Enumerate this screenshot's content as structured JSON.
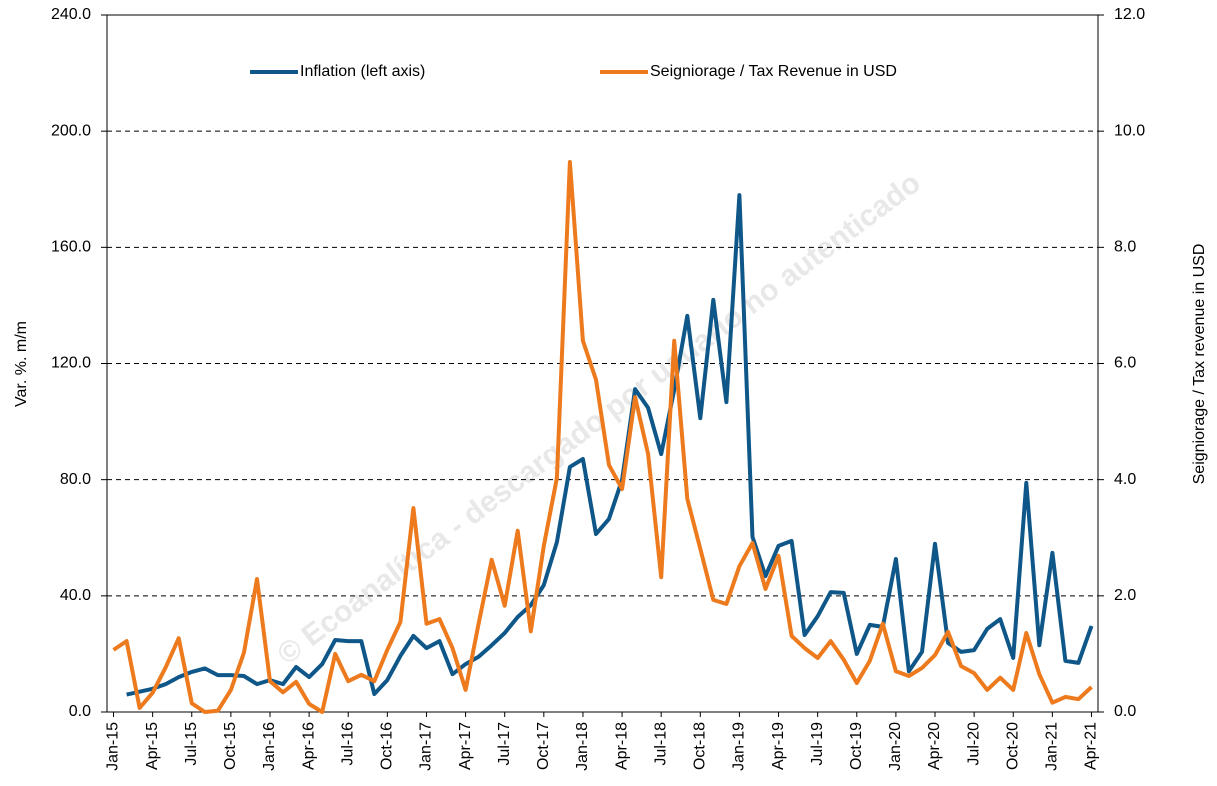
{
  "chart_data": {
    "type": "line",
    "watermark": "© Ecoanalítica - descargado por usuario no autenticado",
    "ylabel": "Var. %. m/m",
    "y2label": "Seigniorage / Tax revenue in USD",
    "categories": [
      "Jan-15",
      null,
      null,
      "Apr-15",
      null,
      null,
      "Jul-15",
      null,
      null,
      "Oct-15",
      null,
      null,
      "Jan-16",
      null,
      null,
      "Apr-16",
      null,
      null,
      "Jul-16",
      null,
      null,
      "Oct-16",
      null,
      null,
      "Jan-17",
      null,
      null,
      "Apr-17",
      null,
      null,
      "Jul-17",
      null,
      null,
      "Oct-17",
      null,
      null,
      "Jan-18",
      null,
      null,
      "Apr-18",
      null,
      null,
      "Jul-18",
      null,
      null,
      "Oct-18",
      null,
      null,
      "Jan-19",
      null,
      null,
      "Apr-19",
      null,
      null,
      "Jul-19",
      null,
      null,
      "Oct-19",
      null,
      null,
      "Jan-20",
      null,
      null,
      "Apr-20",
      null,
      null,
      "Jul-20",
      null,
      null,
      "Oct-20",
      null,
      null,
      "Jan-21",
      null,
      null,
      "Apr-21"
    ],
    "series": [
      {
        "name": "Inflation (left axis)",
        "color": "#0f5788",
        "values": [
          null,
          6,
          7,
          8,
          9.6,
          12,
          13.8,
          15,
          12.7,
          12.7,
          12.4,
          9.6,
          11,
          9.6,
          15.5,
          12,
          16.5,
          24.8,
          24.4,
          24.4,
          6.2,
          11,
          19.3,
          26.2,
          22,
          24.4,
          13,
          16.5,
          19,
          23,
          27.2,
          32.7,
          36.8,
          43.7,
          58.5,
          84.4,
          87.1,
          61.3,
          66.5,
          80,
          111.2,
          104.7,
          88.8,
          110.9,
          136.4,
          101.2,
          141.9,
          106.7,
          178,
          60.3,
          46.8,
          57.2,
          58.9,
          26.5,
          33,
          41.3,
          41,
          20,
          30,
          29.3,
          52.7,
          14,
          20.7,
          57.9,
          23.8,
          20.7,
          21.3,
          28.6,
          32,
          18.6,
          78.9,
          23,
          54.8,
          17.6,
          16.9,
          29.6
        ]
      },
      {
        "name": "Seigniorage / Tax Revenue in USD",
        "color": "#ee7a1e",
        "axis": "y2",
        "values": [
          1.07,
          1.22,
          0.07,
          0.33,
          0.77,
          1.27,
          0.15,
          0,
          0.02,
          0.38,
          1.02,
          2.29,
          0.53,
          0.34,
          0.52,
          0.14,
          0,
          1.0,
          0.53,
          0.64,
          0.53,
          1.07,
          1.55,
          3.51,
          1.52,
          1.6,
          1.1,
          0.38,
          1.52,
          2.62,
          1.83,
          3.12,
          1.39,
          2.86,
          4.03,
          9.47,
          6.39,
          5.72,
          4.25,
          3.84,
          5.42,
          4.44,
          2.32,
          6.39,
          3.67,
          2.81,
          1.93,
          1.86,
          2.51,
          2.91,
          2.12,
          2.69,
          1.31,
          1.1,
          0.93,
          1.22,
          0.9,
          0.5,
          0.88,
          1.52,
          0.7,
          0.62,
          0.76,
          0.98,
          1.38,
          0.79,
          0.67,
          0.38,
          0.59,
          0.38,
          1.36,
          0.65,
          0.16,
          0.26,
          0.22,
          0.43
        ]
      }
    ],
    "ylim": [
      0,
      240
    ],
    "yticks": [
      {
        "value": 0,
        "label": "0.0"
      },
      {
        "value": 40,
        "label": "40.0"
      },
      {
        "value": 80,
        "label": "80.0"
      },
      {
        "value": 120,
        "label": "120.0"
      },
      {
        "value": 160,
        "label": "160.0"
      },
      {
        "value": 200,
        "label": "200.0"
      },
      {
        "value": 240,
        "label": "240.0"
      }
    ],
    "y2lim": [
      0,
      12
    ],
    "y2ticks": [
      {
        "value": 0,
        "label": "0.0"
      },
      {
        "value": 2,
        "label": "2.0"
      },
      {
        "value": 4,
        "label": "4.0"
      },
      {
        "value": 6,
        "label": "6.0"
      },
      {
        "value": 8,
        "label": "8.0"
      },
      {
        "value": 10,
        "label": "10.0"
      },
      {
        "value": 12,
        "label": "12.0"
      }
    ],
    "grid": true,
    "legend": "top"
  }
}
